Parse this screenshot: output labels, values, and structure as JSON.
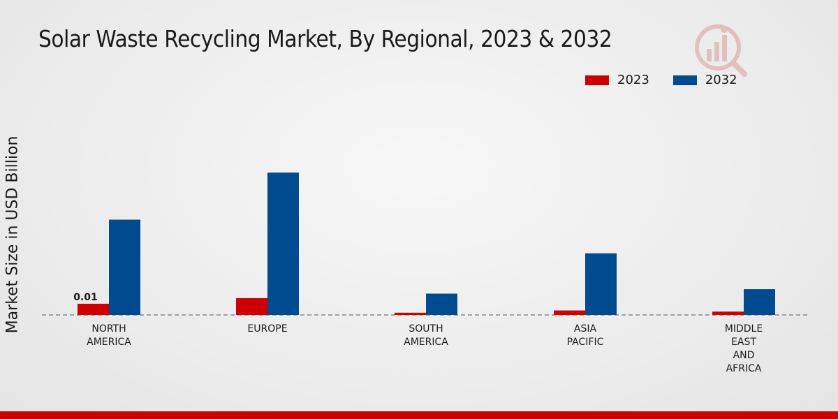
{
  "chart_data": {
    "type": "bar",
    "title": "Solar Waste Recycling Market, By Regional, 2023 & 2032",
    "ylabel": "Market Size in USD Billion",
    "xlabel": "",
    "categories": [
      [
        "NORTH",
        "AMERICA"
      ],
      [
        "EUROPE"
      ],
      [
        "SOUTH",
        "AMERICA"
      ],
      [
        "ASIA",
        "PACIFIC"
      ],
      [
        "MIDDLE",
        "EAST",
        "AND",
        "AFRICA"
      ]
    ],
    "series": [
      {
        "name": "2023",
        "color": "#cc0000",
        "values": [
          0.01,
          0.015,
          0.002,
          0.004,
          0.003
        ]
      },
      {
        "name": "2032",
        "color": "#004a8f",
        "values": [
          0.085,
          0.127,
          0.019,
          0.055,
          0.023
        ]
      }
    ],
    "data_labels": [
      {
        "series": 0,
        "index": 0,
        "text": "0.01"
      }
    ],
    "ylim": [
      0,
      0.2
    ],
    "grid": false,
    "legend_position": "top-right"
  },
  "icons": {
    "logo": "market-research-logo-icon"
  }
}
